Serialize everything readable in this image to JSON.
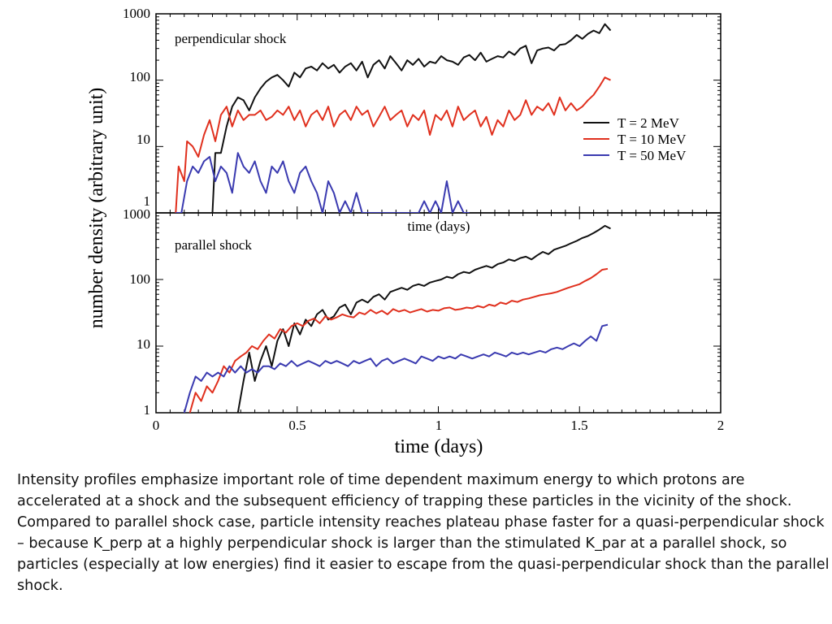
{
  "chart_data": {
    "type": "line",
    "ylabel": "number density (arbitrary unit)",
    "xlabel": "time (days)",
    "x_ticks": [
      "0",
      "0.5",
      "1",
      "1.5",
      "2"
    ],
    "xlim": [
      0,
      2
    ],
    "y_scale": "log",
    "series_colors": {
      "T = 2 MeV": "#111111",
      "T = 10 MeV": "#e0301e",
      "T = 50 MeV": "#3a3ab0"
    },
    "legend": [
      "T = 2 MeV",
      "T = 10 MeV",
      "T = 50 MeV"
    ],
    "legend_position": "top-panel right",
    "panels": [
      {
        "title": "perpendicular shock",
        "inner_xlabel": "time (days)",
        "ylim": [
          1,
          1000
        ],
        "y_ticks": [
          "1000",
          "100",
          "10",
          "1"
        ],
        "series": [
          {
            "name": "T = 2 MeV",
            "x": [
              0.2,
              0.21,
              0.23,
              0.25,
              0.27,
              0.29,
              0.31,
              0.33,
              0.35,
              0.37,
              0.39,
              0.41,
              0.43,
              0.45,
              0.47,
              0.49,
              0.51,
              0.53,
              0.55,
              0.57,
              0.59,
              0.61,
              0.63,
              0.65,
              0.67,
              0.69,
              0.71,
              0.73,
              0.75,
              0.77,
              0.79,
              0.81,
              0.83,
              0.85,
              0.87,
              0.89,
              0.91,
              0.93,
              0.95,
              0.97,
              0.99,
              1.01,
              1.03,
              1.05,
              1.07,
              1.09,
              1.11,
              1.13,
              1.15,
              1.17,
              1.19,
              1.21,
              1.23,
              1.25,
              1.27,
              1.29,
              1.31,
              1.33,
              1.35,
              1.37,
              1.39,
              1.41,
              1.43,
              1.45,
              1.47,
              1.49,
              1.51,
              1.53,
              1.55,
              1.57,
              1.59,
              1.61
            ],
            "values": [
              1,
              8,
              8,
              20,
              40,
              55,
              50,
              35,
              55,
              75,
              95,
              110,
              120,
              100,
              80,
              130,
              110,
              150,
              160,
              140,
              180,
              150,
              170,
              130,
              160,
              180,
              140,
              190,
              110,
              170,
              200,
              150,
              230,
              180,
              140,
              200,
              170,
              210,
              160,
              190,
              180,
              230,
              200,
              190,
              170,
              220,
              240,
              200,
              260,
              190,
              210,
              230,
              220,
              270,
              240,
              300,
              330,
              180,
              280,
              300,
              310,
              280,
              340,
              350,
              400,
              480,
              420,
              500,
              560,
              510,
              700,
              560
            ]
          },
          {
            "name": "T = 10 MeV",
            "x": [
              0.07,
              0.08,
              0.1,
              0.11,
              0.13,
              0.15,
              0.17,
              0.19,
              0.21,
              0.23,
              0.25,
              0.27,
              0.29,
              0.31,
              0.33,
              0.35,
              0.37,
              0.39,
              0.41,
              0.43,
              0.45,
              0.47,
              0.49,
              0.51,
              0.53,
              0.55,
              0.57,
              0.59,
              0.61,
              0.63,
              0.65,
              0.67,
              0.69,
              0.71,
              0.73,
              0.75,
              0.77,
              0.79,
              0.81,
              0.83,
              0.85,
              0.87,
              0.89,
              0.91,
              0.93,
              0.95,
              0.97,
              0.99,
              1.01,
              1.03,
              1.05,
              1.07,
              1.09,
              1.11,
              1.13,
              1.15,
              1.17,
              1.19,
              1.21,
              1.23,
              1.25,
              1.27,
              1.29,
              1.31,
              1.33,
              1.35,
              1.37,
              1.39,
              1.41,
              1.43,
              1.45,
              1.47,
              1.49,
              1.51,
              1.53,
              1.55,
              1.57,
              1.59,
              1.61
            ],
            "values": [
              1,
              5,
              3,
              12,
              10,
              7,
              15,
              25,
              12,
              30,
              40,
              20,
              35,
              25,
              30,
              30,
              35,
              25,
              28,
              35,
              30,
              40,
              25,
              35,
              20,
              30,
              35,
              25,
              40,
              20,
              30,
              35,
              25,
              40,
              30,
              35,
              20,
              28,
              40,
              25,
              30,
              35,
              20,
              30,
              25,
              35,
              15,
              30,
              25,
              35,
              20,
              40,
              25,
              30,
              35,
              20,
              28,
              15,
              25,
              20,
              35,
              25,
              30,
              50,
              30,
              40,
              35,
              45,
              30,
              55,
              35,
              45,
              35,
              40,
              50,
              60,
              80,
              110,
              100
            ]
          },
          {
            "name": "T = 50 MeV",
            "x": [
              0.07,
              0.09,
              0.11,
              0.13,
              0.15,
              0.17,
              0.19,
              0.21,
              0.23,
              0.25,
              0.27,
              0.29,
              0.31,
              0.33,
              0.35,
              0.37,
              0.39,
              0.41,
              0.43,
              0.45,
              0.47,
              0.49,
              0.51,
              0.53,
              0.55,
              0.57,
              0.59,
              0.61,
              0.63,
              0.65,
              0.67,
              0.69,
              0.71,
              0.73,
              0.75,
              0.77,
              0.79,
              0.81,
              0.83,
              0.85,
              0.87,
              0.89,
              0.91,
              0.93,
              0.95,
              0.97,
              0.99,
              1.01,
              1.03,
              1.05,
              1.07,
              1.09,
              1.11
            ],
            "values": [
              1,
              1,
              3,
              5,
              4,
              6,
              7,
              3,
              5,
              4,
              2,
              8,
              5,
              4,
              6,
              3,
              2,
              5,
              4,
              6,
              3,
              2,
              4,
              5,
              3,
              2,
              1,
              3,
              2,
              1,
              1.5,
              1,
              2,
              1,
              1,
              1,
              1,
              1,
              1,
              1,
              1,
              1,
              1,
              1,
              1.5,
              1,
              1.5,
              1,
              3,
              1,
              1.5,
              1,
              1
            ]
          }
        ]
      },
      {
        "title": "parallel shock",
        "ylim": [
          1,
          1000
        ],
        "y_ticks": [
          "1000",
          "100",
          "10",
          "1"
        ],
        "series": [
          {
            "name": "T = 2 MeV",
            "x": [
              0.29,
              0.31,
              0.33,
              0.35,
              0.37,
              0.39,
              0.41,
              0.43,
              0.45,
              0.47,
              0.49,
              0.51,
              0.53,
              0.55,
              0.57,
              0.59,
              0.61,
              0.63,
              0.65,
              0.67,
              0.69,
              0.71,
              0.73,
              0.75,
              0.77,
              0.79,
              0.81,
              0.83,
              0.85,
              0.87,
              0.89,
              0.91,
              0.93,
              0.95,
              0.97,
              0.99,
              1.01,
              1.03,
              1.05,
              1.07,
              1.09,
              1.11,
              1.13,
              1.15,
              1.17,
              1.19,
              1.21,
              1.23,
              1.25,
              1.27,
              1.29,
              1.31,
              1.33,
              1.35,
              1.37,
              1.39,
              1.41,
              1.43,
              1.45,
              1.47,
              1.49,
              1.51,
              1.53,
              1.55,
              1.57,
              1.59,
              1.61
            ],
            "values": [
              1,
              3,
              8,
              3,
              6,
              10,
              5,
              12,
              18,
              10,
              22,
              15,
              25,
              20,
              30,
              35,
              25,
              28,
              38,
              42,
              30,
              45,
              50,
              45,
              55,
              60,
              50,
              65,
              70,
              75,
              70,
              80,
              85,
              80,
              90,
              95,
              100,
              110,
              105,
              120,
              130,
              125,
              140,
              150,
              160,
              150,
              170,
              180,
              200,
              190,
              210,
              220,
              200,
              230,
              260,
              240,
              280,
              300,
              320,
              350,
              380,
              420,
              450,
              500,
              560,
              640,
              580
            ]
          },
          {
            "name": "T = 10 MeV",
            "x": [
              0.12,
              0.14,
              0.16,
              0.18,
              0.2,
              0.22,
              0.24,
              0.26,
              0.28,
              0.3,
              0.32,
              0.34,
              0.36,
              0.38,
              0.4,
              0.42,
              0.44,
              0.46,
              0.48,
              0.5,
              0.52,
              0.54,
              0.56,
              0.58,
              0.6,
              0.62,
              0.64,
              0.66,
              0.68,
              0.7,
              0.72,
              0.74,
              0.76,
              0.78,
              0.8,
              0.82,
              0.84,
              0.86,
              0.88,
              0.9,
              0.92,
              0.94,
              0.96,
              0.98,
              1.0,
              1.02,
              1.04,
              1.06,
              1.08,
              1.1,
              1.12,
              1.14,
              1.16,
              1.18,
              1.2,
              1.22,
              1.24,
              1.26,
              1.28,
              1.3,
              1.32,
              1.34,
              1.36,
              1.38,
              1.4,
              1.42,
              1.44,
              1.46,
              1.48,
              1.5,
              1.52,
              1.54,
              1.56,
              1.58,
              1.6
            ],
            "values": [
              1,
              2,
              1.5,
              2.5,
              2,
              3,
              5,
              4,
              6,
              7,
              8,
              10,
              9,
              12,
              15,
              13,
              18,
              16,
              20,
              22,
              20,
              24,
              26,
              22,
              28,
              25,
              27,
              30,
              28,
              27,
              32,
              30,
              35,
              31,
              34,
              30,
              36,
              33,
              35,
              32,
              34,
              36,
              33,
              35,
              34,
              37,
              38,
              35,
              36,
              38,
              37,
              40,
              38,
              42,
              40,
              45,
              43,
              48,
              46,
              50,
              52,
              55,
              58,
              60,
              62,
              65,
              70,
              75,
              80,
              85,
              95,
              105,
              120,
              140,
              145
            ]
          },
          {
            "name": "T = 50 MeV",
            "x": [
              0.1,
              0.12,
              0.14,
              0.16,
              0.18,
              0.2,
              0.22,
              0.24,
              0.26,
              0.28,
              0.3,
              0.32,
              0.34,
              0.36,
              0.38,
              0.4,
              0.42,
              0.44,
              0.46,
              0.48,
              0.5,
              0.52,
              0.54,
              0.56,
              0.58,
              0.6,
              0.62,
              0.64,
              0.66,
              0.68,
              0.7,
              0.72,
              0.74,
              0.76,
              0.78,
              0.8,
              0.82,
              0.84,
              0.86,
              0.88,
              0.9,
              0.92,
              0.94,
              0.96,
              0.98,
              1.0,
              1.02,
              1.04,
              1.06,
              1.08,
              1.1,
              1.12,
              1.14,
              1.16,
              1.18,
              1.2,
              1.22,
              1.24,
              1.26,
              1.28,
              1.3,
              1.32,
              1.34,
              1.36,
              1.38,
              1.4,
              1.42,
              1.44,
              1.46,
              1.48,
              1.5,
              1.52,
              1.54,
              1.56,
              1.58,
              1.6
            ],
            "values": [
              1,
              2,
              3.5,
              3,
              4,
              3.5,
              4,
              3.5,
              5,
              4,
              5,
              4,
              4.5,
              4,
              5,
              5,
              4.5,
              5.5,
              5,
              6,
              5,
              5.5,
              6,
              5.5,
              5,
              6,
              5.5,
              6,
              5.5,
              5,
              6,
              5.5,
              6,
              6.5,
              5,
              6,
              6.5,
              5.5,
              6,
              6.5,
              6,
              5.5,
              7,
              6.5,
              6,
              7,
              6.5,
              7,
              6.5,
              7.5,
              7,
              6.5,
              7,
              7.5,
              7,
              8,
              7.5,
              7,
              8,
              7.5,
              8,
              7.5,
              8,
              8.5,
              8,
              9,
              9.5,
              9,
              10,
              11,
              10,
              12,
              14,
              12,
              20,
              21
            ]
          }
        ]
      }
    ]
  },
  "caption": "Intensity profiles emphasize important role of time dependent maximum energy to which protons are accelerated at a shock and the subsequent efficiency of trapping these particles in the vicinity of the shock. Compared to parallel shock case, particle intensity reaches plateau phase faster for a quasi-perpendicular shock – because K_perp at a highly perpendicular shock is larger than the stimulated K_par at a parallel shock, so particles (especially at low energies) find it easier to escape from the quasi-perpendicular shock than the parallel shock."
}
